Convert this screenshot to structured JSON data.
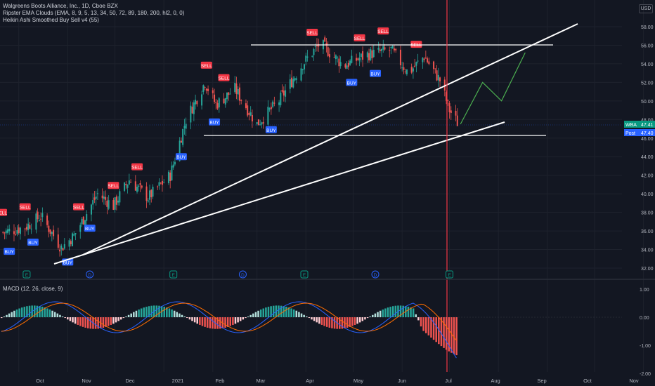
{
  "header": {
    "symbol_line": "Walgreens Boots Alliance, Inc., 1D, Cboe BZX",
    "indicator1": "Ripster EMA Clouds (EMA, 8, 9, 5, 13, 34, 50, 72, 89, 180, 200, hl2, 0, 0)",
    "indicator2": "Heikin Ashi Smoothed Buy Sell v4  (55)",
    "currency": "USD"
  },
  "macd": {
    "label": "MACD (12, 26, close, 9)",
    "ticks": [
      "1.00",
      "0.00",
      "-1.00",
      "-2.00"
    ]
  },
  "price_axis": {
    "ticks": [
      "58.00",
      "56.00",
      "54.00",
      "52.00",
      "50.00",
      "48.00",
      "46.00",
      "44.00",
      "42.00",
      "40.00",
      "38.00",
      "36.00",
      "34.00",
      "32.00"
    ],
    "tag_wba_label": "WBA",
    "tag_wba_value": "47.41",
    "tag_post_label": "Post",
    "tag_post_value": "47.40"
  },
  "time_axis": {
    "ticks": [
      "Oct",
      "Nov",
      "Dec",
      "2021",
      "Feb",
      "Mar",
      "Apr",
      "May",
      "Jun",
      "Jul",
      "Aug",
      "Sep",
      "Oct",
      "Nov"
    ]
  },
  "signals": {
    "sell": "SELL",
    "buy": "BUY",
    "event_e": "E",
    "event_d": "D"
  },
  "chart_data": {
    "type": "candlestick",
    "title": "Walgreens Boots Alliance, Inc., 1D, Cboe BZX",
    "ylim": [
      31,
      59
    ],
    "last_price": 47.41,
    "post_price": 47.4,
    "price_path": [
      {
        "date": "2020-09-20",
        "close": 35.8
      },
      {
        "date": "2020-10-05",
        "close": 36.4
      },
      {
        "date": "2020-10-15",
        "close": 37.6
      },
      {
        "date": "2020-10-28",
        "close": 34.2
      },
      {
        "date": "2020-11-05",
        "close": 35.5
      },
      {
        "date": "2020-11-20",
        "close": 40.0
      },
      {
        "date": "2020-11-30",
        "close": 38.7
      },
      {
        "date": "2020-12-10",
        "close": 41.5
      },
      {
        "date": "2020-12-22",
        "close": 39.6
      },
      {
        "date": "2021-01-05",
        "close": 42.0
      },
      {
        "date": "2021-01-15",
        "close": 48.0
      },
      {
        "date": "2021-01-27",
        "close": 52.0
      },
      {
        "date": "2021-02-03",
        "close": 49.6
      },
      {
        "date": "2021-02-15",
        "close": 51.3
      },
      {
        "date": "2021-03-01",
        "close": 47.5
      },
      {
        "date": "2021-03-15",
        "close": 50.0
      },
      {
        "date": "2021-03-30",
        "close": 54.0
      },
      {
        "date": "2021-04-10",
        "close": 56.2
      },
      {
        "date": "2021-04-25",
        "close": 53.8
      },
      {
        "date": "2021-05-10",
        "close": 55.0
      },
      {
        "date": "2021-05-25",
        "close": 55.5
      },
      {
        "date": "2021-06-05",
        "close": 53.0
      },
      {
        "date": "2021-06-15",
        "close": 54.8
      },
      {
        "date": "2021-06-25",
        "close": 52.2
      },
      {
        "date": "2021-07-01",
        "close": 49.0
      },
      {
        "date": "2021-07-07",
        "close": 47.4
      }
    ],
    "resistance_level": 56.0,
    "support_level": 46.0,
    "projection_path": [
      {
        "date": "2021-07-08",
        "price": 47.5
      },
      {
        "date": "2021-07-22",
        "price": 52.0
      },
      {
        "date": "2021-08-03",
        "price": 50.0
      },
      {
        "date": "2021-08-18",
        "price": 55.2
      }
    ],
    "sell_signals": [
      "2020-09-20",
      "2020-10-05",
      "2020-11-08",
      "2020-11-30",
      "2020-12-15",
      "2021-01-28",
      "2021-02-08",
      "2021-04-05",
      "2021-05-05",
      "2021-05-20",
      "2021-06-10"
    ],
    "buy_signals": [
      "2020-09-25",
      "2020-10-10",
      "2020-11-01",
      "2020-11-15",
      "2021-01-12",
      "2021-02-02",
      "2021-03-10",
      "2021-04-30",
      "2021-05-15"
    ],
    "macd_ylim": [
      -2.0,
      1.3
    ]
  }
}
